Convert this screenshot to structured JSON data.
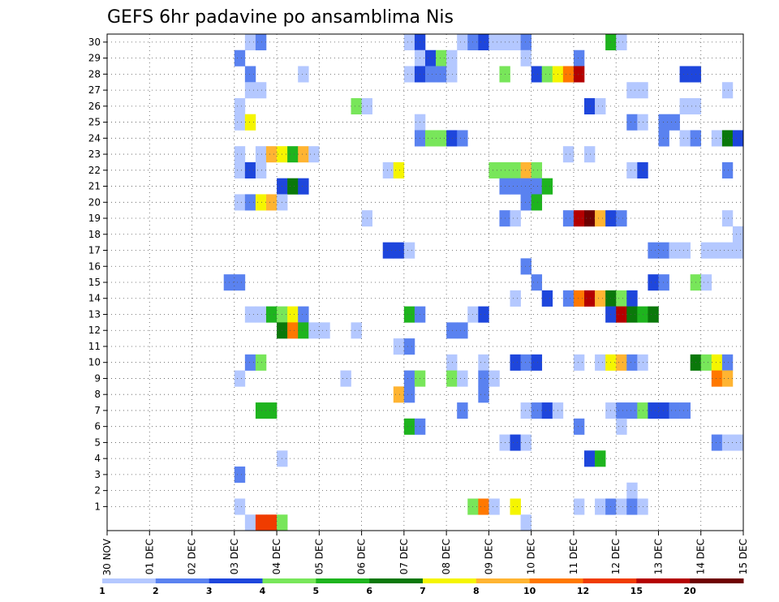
{
  "chart_data": {
    "type": "heatmap",
    "title": "GEFS 6hr padavine po ansamblima Nis",
    "members": [
      1,
      2,
      3,
      4,
      5,
      6,
      7,
      8,
      9,
      10,
      11,
      12,
      13,
      14,
      15,
      16,
      17,
      18,
      19,
      20,
      21,
      22,
      23,
      24,
      25,
      26,
      27,
      28,
      29,
      30
    ],
    "x_ticks": [
      "30 NOV",
      "01 DEC",
      "02 DEC",
      "03 DEC",
      "04 DEC",
      "05 DEC",
      "06 DEC",
      "07 DEC",
      "08 DEC",
      "09 DEC",
      "10 DEC",
      "11 DEC",
      "12 DEC",
      "13 DEC",
      "14 DEC",
      "15 DEC"
    ],
    "steps_per_day": 4,
    "color_levels": [
      "1",
      "2",
      "3",
      "4",
      "5",
      "6",
      "7",
      "8",
      "10",
      "12",
      "15",
      "20"
    ],
    "color_level_bins": [
      {
        "label": "1",
        "color": "#b4c8ff"
      },
      {
        "label": "2",
        "color": "#5a82f0"
      },
      {
        "label": "3",
        "color": "#1e46dc"
      },
      {
        "label": "4",
        "color": "#78e65a"
      },
      {
        "label": "5",
        "color": "#1eb41e"
      },
      {
        "label": "6",
        "color": "#0a780a"
      },
      {
        "label": "7",
        "color": "#f5f500"
      },
      {
        "label": "8",
        "color": "#ffb432"
      },
      {
        "label": "10",
        "color": "#ff7800"
      },
      {
        "label": "12",
        "color": "#f03c00"
      },
      {
        "label": "15",
        "color": "#b40000"
      },
      {
        "label": "20",
        "color": "#6e0000"
      }
    ],
    "cells": [
      [
        30,
        13,
        0
      ],
      [
        30,
        14,
        1
      ],
      [
        30,
        28,
        0
      ],
      [
        30,
        29,
        2
      ],
      [
        30,
        33,
        0
      ],
      [
        30,
        34,
        1
      ],
      [
        30,
        35,
        2
      ],
      [
        30,
        36,
        0
      ],
      [
        30,
        37,
        0
      ],
      [
        30,
        38,
        0
      ],
      [
        30,
        39,
        1
      ],
      [
        30,
        47,
        4
      ],
      [
        30,
        48,
        0
      ],
      [
        29,
        12,
        1
      ],
      [
        29,
        29,
        0
      ],
      [
        29,
        30,
        2
      ],
      [
        29,
        31,
        3
      ],
      [
        29,
        32,
        0
      ],
      [
        29,
        39,
        0
      ],
      [
        29,
        44,
        1
      ],
      [
        28,
        13,
        1
      ],
      [
        28,
        18,
        0
      ],
      [
        28,
        28,
        0
      ],
      [
        28,
        29,
        2
      ],
      [
        28,
        30,
        1
      ],
      [
        28,
        31,
        1
      ],
      [
        28,
        32,
        0
      ],
      [
        28,
        37,
        3
      ],
      [
        28,
        40,
        2
      ],
      [
        28,
        41,
        3
      ],
      [
        28,
        42,
        6
      ],
      [
        28,
        43,
        8
      ],
      [
        28,
        44,
        10
      ],
      [
        28,
        54,
        2
      ],
      [
        28,
        55,
        2
      ],
      [
        27,
        13,
        0
      ],
      [
        27,
        14,
        0
      ],
      [
        27,
        49,
        0
      ],
      [
        27,
        50,
        0
      ],
      [
        27,
        58,
        0
      ],
      [
        26,
        12,
        0
      ],
      [
        26,
        23,
        3
      ],
      [
        26,
        24,
        0
      ],
      [
        26,
        45,
        2
      ],
      [
        26,
        46,
        0
      ],
      [
        26,
        54,
        0
      ],
      [
        26,
        55,
        0
      ],
      [
        25,
        12,
        0
      ],
      [
        25,
        13,
        6
      ],
      [
        25,
        29,
        0
      ],
      [
        25,
        49,
        1
      ],
      [
        25,
        50,
        0
      ],
      [
        25,
        52,
        1
      ],
      [
        25,
        53,
        1
      ],
      [
        24,
        29,
        1
      ],
      [
        24,
        30,
        3
      ],
      [
        24,
        31,
        3
      ],
      [
        24,
        32,
        2
      ],
      [
        24,
        33,
        1
      ],
      [
        24,
        52,
        1
      ],
      [
        24,
        54,
        0
      ],
      [
        24,
        55,
        1
      ],
      [
        24,
        57,
        0
      ],
      [
        24,
        58,
        5
      ],
      [
        24,
        59,
        2
      ],
      [
        23,
        12,
        0
      ],
      [
        23,
        14,
        0
      ],
      [
        23,
        15,
        7
      ],
      [
        23,
        16,
        6
      ],
      [
        23,
        17,
        4
      ],
      [
        23,
        18,
        7
      ],
      [
        23,
        19,
        0
      ],
      [
        23,
        43,
        0
      ],
      [
        23,
        45,
        0
      ],
      [
        22,
        12,
        0
      ],
      [
        22,
        13,
        2
      ],
      [
        22,
        14,
        0
      ],
      [
        22,
        26,
        0
      ],
      [
        22,
        27,
        6
      ],
      [
        22,
        36,
        3
      ],
      [
        22,
        37,
        3
      ],
      [
        22,
        38,
        3
      ],
      [
        22,
        39,
        7
      ],
      [
        22,
        40,
        3
      ],
      [
        22,
        49,
        0
      ],
      [
        22,
        50,
        2
      ],
      [
        22,
        58,
        1
      ],
      [
        21,
        16,
        2
      ],
      [
        21,
        17,
        5
      ],
      [
        21,
        18,
        2
      ],
      [
        21,
        37,
        1
      ],
      [
        21,
        38,
        1
      ],
      [
        21,
        39,
        1
      ],
      [
        21,
        40,
        1
      ],
      [
        21,
        41,
        4
      ],
      [
        20,
        12,
        0
      ],
      [
        20,
        13,
        1
      ],
      [
        20,
        14,
        6
      ],
      [
        20,
        15,
        7
      ],
      [
        20,
        16,
        0
      ],
      [
        20,
        39,
        1
      ],
      [
        20,
        40,
        4
      ],
      [
        19,
        24,
        0
      ],
      [
        19,
        37,
        1
      ],
      [
        19,
        38,
        0
      ],
      [
        19,
        43,
        1
      ],
      [
        19,
        44,
        10
      ],
      [
        19,
        45,
        11
      ],
      [
        19,
        46,
        7
      ],
      [
        19,
        47,
        2
      ],
      [
        19,
        48,
        1
      ],
      [
        19,
        58,
        0
      ],
      [
        18,
        59,
        0
      ],
      [
        17,
        26,
        2
      ],
      [
        17,
        27,
        2
      ],
      [
        17,
        28,
        0
      ],
      [
        17,
        51,
        1
      ],
      [
        17,
        52,
        1
      ],
      [
        17,
        53,
        0
      ],
      [
        17,
        54,
        0
      ],
      [
        17,
        56,
        0
      ],
      [
        17,
        57,
        0
      ],
      [
        17,
        58,
        0
      ],
      [
        17,
        59,
        0
      ],
      [
        16,
        39,
        1
      ],
      [
        15,
        11,
        1
      ],
      [
        15,
        12,
        1
      ],
      [
        15,
        40,
        1
      ],
      [
        15,
        51,
        2
      ],
      [
        15,
        52,
        1
      ],
      [
        15,
        55,
        3
      ],
      [
        15,
        56,
        0
      ],
      [
        14,
        38,
        0
      ],
      [
        14,
        41,
        2
      ],
      [
        14,
        43,
        1
      ],
      [
        14,
        44,
        8
      ],
      [
        14,
        45,
        10
      ],
      [
        14,
        46,
        7
      ],
      [
        14,
        47,
        5
      ],
      [
        14,
        48,
        3
      ],
      [
        14,
        49,
        2
      ],
      [
        13,
        13,
        0
      ],
      [
        13,
        14,
        0
      ],
      [
        13,
        15,
        4
      ],
      [
        13,
        16,
        3
      ],
      [
        13,
        17,
        6
      ],
      [
        13,
        18,
        1
      ],
      [
        13,
        28,
        4
      ],
      [
        13,
        29,
        1
      ],
      [
        13,
        34,
        0
      ],
      [
        13,
        35,
        2
      ],
      [
        13,
        47,
        2
      ],
      [
        13,
        48,
        10
      ],
      [
        13,
        49,
        5
      ],
      [
        13,
        50,
        4
      ],
      [
        13,
        51,
        5
      ],
      [
        12,
        16,
        5
      ],
      [
        12,
        17,
        8
      ],
      [
        12,
        18,
        4
      ],
      [
        12,
        19,
        0
      ],
      [
        12,
        20,
        0
      ],
      [
        12,
        23,
        0
      ],
      [
        12,
        32,
        1
      ],
      [
        12,
        33,
        1
      ],
      [
        11,
        27,
        0
      ],
      [
        11,
        28,
        1
      ],
      [
        10,
        13,
        1
      ],
      [
        10,
        14,
        3
      ],
      [
        10,
        32,
        0
      ],
      [
        10,
        35,
        0
      ],
      [
        10,
        38,
        2
      ],
      [
        10,
        39,
        1
      ],
      [
        10,
        40,
        2
      ],
      [
        10,
        44,
        0
      ],
      [
        10,
        46,
        0
      ],
      [
        10,
        47,
        6
      ],
      [
        10,
        48,
        7
      ],
      [
        10,
        49,
        1
      ],
      [
        10,
        50,
        0
      ],
      [
        10,
        55,
        5
      ],
      [
        10,
        56,
        3
      ],
      [
        10,
        57,
        6
      ],
      [
        10,
        58,
        1
      ],
      [
        9,
        12,
        0
      ],
      [
        9,
        22,
        0
      ],
      [
        9,
        28,
        1
      ],
      [
        9,
        29,
        3
      ],
      [
        9,
        32,
        3
      ],
      [
        9,
        33,
        0
      ],
      [
        9,
        35,
        1
      ],
      [
        9,
        36,
        0
      ],
      [
        9,
        57,
        8
      ],
      [
        9,
        58,
        7
      ],
      [
        8,
        27,
        7
      ],
      [
        8,
        28,
        1
      ],
      [
        8,
        35,
        1
      ],
      [
        7,
        14,
        4
      ],
      [
        7,
        15,
        4
      ],
      [
        7,
        33,
        1
      ],
      [
        7,
        39,
        0
      ],
      [
        7,
        40,
        1
      ],
      [
        7,
        41,
        2
      ],
      [
        7,
        42,
        0
      ],
      [
        7,
        47,
        0
      ],
      [
        7,
        48,
        1
      ],
      [
        7,
        49,
        1
      ],
      [
        7,
        50,
        3
      ],
      [
        7,
        51,
        2
      ],
      [
        7,
        52,
        2
      ],
      [
        7,
        53,
        1
      ],
      [
        7,
        54,
        1
      ],
      [
        6,
        28,
        4
      ],
      [
        6,
        29,
        1
      ],
      [
        6,
        44,
        1
      ],
      [
        6,
        48,
        0
      ],
      [
        5,
        37,
        0
      ],
      [
        5,
        38,
        2
      ],
      [
        5,
        39,
        0
      ],
      [
        5,
        57,
        1
      ],
      [
        5,
        58,
        0
      ],
      [
        5,
        59,
        0
      ],
      [
        4,
        16,
        0
      ],
      [
        4,
        45,
        2
      ],
      [
        4,
        46,
        4
      ],
      [
        3,
        12,
        1
      ],
      [
        2,
        49,
        0
      ],
      [
        1,
        12,
        0
      ],
      [
        1,
        34,
        3
      ],
      [
        1,
        35,
        8
      ],
      [
        1,
        36,
        0
      ],
      [
        1,
        38,
        6
      ],
      [
        1,
        44,
        0
      ],
      [
        1,
        46,
        0
      ],
      [
        1,
        47,
        1
      ],
      [
        1,
        48,
        0
      ],
      [
        1,
        49,
        1
      ],
      [
        1,
        50,
        0
      ],
      [
        0,
        13,
        0
      ],
      [
        0,
        14,
        9
      ],
      [
        0,
        15,
        9
      ],
      [
        0,
        16,
        3
      ],
      [
        0,
        39,
        0
      ]
    ]
  }
}
